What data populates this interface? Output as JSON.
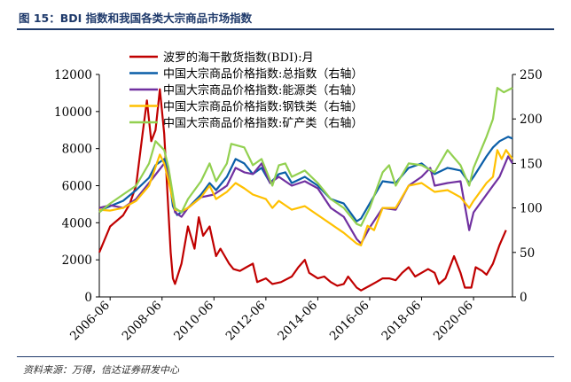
{
  "figure": {
    "title": "图 15：BDI 指数和我国各类大宗商品市场指数",
    "source": "资料来源：万得，信达证券研发中心"
  },
  "chart_data": {
    "type": "line",
    "title": "",
    "xlabel": "",
    "ylabel_left": "",
    "ylabel_right": "",
    "ylim_left": [
      0,
      12000
    ],
    "ylim_right": [
      0,
      250
    ],
    "grid": false,
    "legend_position": "top-center",
    "xlim": [
      "2006-01",
      "2021-12"
    ],
    "x_ticks": [
      "2006-06",
      "2008-06",
      "2010-06",
      "2012-06",
      "2014-06",
      "2016-06",
      "2018-06",
      "2020-06"
    ],
    "y_ticks_left": [
      "0",
      "2000",
      "4000",
      "6000",
      "8000",
      "10000",
      "12000"
    ],
    "y_ticks_right": [
      "0",
      "50",
      "100",
      "150",
      "200",
      "250"
    ],
    "series": [
      {
        "name": "波罗的海干散货指数(BDI):月",
        "axis": "left",
        "color": "#c00000",
        "points": [
          [
            "2006-01",
            2400
          ],
          [
            "2006-06",
            3800
          ],
          [
            "2006-12",
            4400
          ],
          [
            "2007-03",
            5000
          ],
          [
            "2007-06",
            6000
          ],
          [
            "2007-09",
            8800
          ],
          [
            "2007-11",
            10600
          ],
          [
            "2008-01",
            8400
          ],
          [
            "2008-03",
            9000
          ],
          [
            "2008-05",
            11200
          ],
          [
            "2008-07",
            8800
          ],
          [
            "2008-09",
            4500
          ],
          [
            "2008-10",
            2400
          ],
          [
            "2008-11",
            1000
          ],
          [
            "2008-12",
            700
          ],
          [
            "2009-03",
            1800
          ],
          [
            "2009-06",
            3800
          ],
          [
            "2009-09",
            2600
          ],
          [
            "2009-11",
            4300
          ],
          [
            "2010-01",
            3300
          ],
          [
            "2010-04",
            3800
          ],
          [
            "2010-07",
            2200
          ],
          [
            "2010-09",
            2600
          ],
          [
            "2010-11",
            2200
          ],
          [
            "2011-01",
            1800
          ],
          [
            "2011-03",
            1500
          ],
          [
            "2011-06",
            1400
          ],
          [
            "2011-09",
            1600
          ],
          [
            "2011-12",
            1800
          ],
          [
            "2012-02",
            800
          ],
          [
            "2012-06",
            1000
          ],
          [
            "2012-09",
            700
          ],
          [
            "2013-01",
            800
          ],
          [
            "2013-06",
            1100
          ],
          [
            "2013-09",
            1600
          ],
          [
            "2013-12",
            2000
          ],
          [
            "2014-02",
            1300
          ],
          [
            "2014-06",
            1000
          ],
          [
            "2014-09",
            1100
          ],
          [
            "2014-12",
            800
          ],
          [
            "2015-03",
            600
          ],
          [
            "2015-06",
            700
          ],
          [
            "2015-08",
            1100
          ],
          [
            "2015-12",
            500
          ],
          [
            "2016-02",
            350
          ],
          [
            "2016-06",
            600
          ],
          [
            "2016-09",
            800
          ],
          [
            "2016-12",
            1000
          ],
          [
            "2017-03",
            1000
          ],
          [
            "2017-06",
            900
          ],
          [
            "2017-09",
            1300
          ],
          [
            "2017-12",
            1600
          ],
          [
            "2018-03",
            1100
          ],
          [
            "2018-06",
            1300
          ],
          [
            "2018-09",
            1500
          ],
          [
            "2018-12",
            1300
          ],
          [
            "2019-02",
            700
          ],
          [
            "2019-05",
            1000
          ],
          [
            "2019-09",
            2200
          ],
          [
            "2019-12",
            1300
          ],
          [
            "2020-02",
            500
          ],
          [
            "2020-05",
            500
          ],
          [
            "2020-07",
            1600
          ],
          [
            "2020-10",
            1400
          ],
          [
            "2020-12",
            1200
          ],
          [
            "2021-03",
            1800
          ],
          [
            "2021-06",
            2800
          ],
          [
            "2021-09",
            3600
          ]
        ]
      },
      {
        "name": "中国大宗商品价格指数:总指数（右轴）",
        "axis": "right",
        "color": "#0a5ea8",
        "points": [
          [
            "2006-01",
            97
          ],
          [
            "2006-06",
            102
          ],
          [
            "2006-12",
            108
          ],
          [
            "2007-06",
            120
          ],
          [
            "2007-12",
            134
          ],
          [
            "2008-03",
            148
          ],
          [
            "2008-07",
            155
          ],
          [
            "2008-09",
            140
          ],
          [
            "2008-11",
            102
          ],
          [
            "2009-01",
            92
          ],
          [
            "2009-06",
            100
          ],
          [
            "2009-12",
            115
          ],
          [
            "2010-04",
            128
          ],
          [
            "2010-07",
            120
          ],
          [
            "2010-12",
            135
          ],
          [
            "2011-04",
            155
          ],
          [
            "2011-08",
            150
          ],
          [
            "2011-12",
            138
          ],
          [
            "2012-04",
            145
          ],
          [
            "2012-08",
            128
          ],
          [
            "2012-12",
            138
          ],
          [
            "2013-03",
            140
          ],
          [
            "2013-06",
            128
          ],
          [
            "2013-12",
            135
          ],
          [
            "2014-06",
            125
          ],
          [
            "2014-12",
            110
          ],
          [
            "2015-06",
            105
          ],
          [
            "2015-12",
            85
          ],
          [
            "2016-02",
            88
          ],
          [
            "2016-06",
            105
          ],
          [
            "2016-12",
            130
          ],
          [
            "2017-06",
            128
          ],
          [
            "2017-12",
            145
          ],
          [
            "2018-06",
            150
          ],
          [
            "2018-12",
            138
          ],
          [
            "2019-06",
            145
          ],
          [
            "2019-12",
            142
          ],
          [
            "2020-04",
            128
          ],
          [
            "2020-06",
            135
          ],
          [
            "2020-12",
            158
          ],
          [
            "2021-03",
            168
          ],
          [
            "2021-06",
            175
          ],
          [
            "2021-10",
            180
          ],
          [
            "2021-12",
            178
          ]
        ]
      },
      {
        "name": "中国大宗商品价格指数:能源类（右轴）",
        "axis": "right",
        "color": "#7030a0",
        "points": [
          [
            "2006-01",
            100
          ],
          [
            "2006-06",
            103
          ],
          [
            "2006-12",
            100
          ],
          [
            "2007-06",
            110
          ],
          [
            "2007-12",
            128
          ],
          [
            "2008-07",
            150
          ],
          [
            "2008-09",
            138
          ],
          [
            "2008-12",
            95
          ],
          [
            "2009-03",
            90
          ],
          [
            "2009-06",
            100
          ],
          [
            "2009-12",
            112
          ],
          [
            "2010-06",
            115
          ],
          [
            "2010-12",
            125
          ],
          [
            "2011-04",
            145
          ],
          [
            "2011-08",
            140
          ],
          [
            "2011-12",
            138
          ],
          [
            "2012-04",
            150
          ],
          [
            "2012-08",
            128
          ],
          [
            "2012-12",
            135
          ],
          [
            "2013-06",
            125
          ],
          [
            "2013-12",
            130
          ],
          [
            "2014-06",
            122
          ],
          [
            "2014-12",
            100
          ],
          [
            "2015-06",
            90
          ],
          [
            "2015-12",
            65
          ],
          [
            "2016-02",
            60
          ],
          [
            "2016-06",
            78
          ],
          [
            "2016-12",
            100
          ],
          [
            "2017-06",
            98
          ],
          [
            "2017-12",
            125
          ],
          [
            "2018-06",
            135
          ],
          [
            "2018-10",
            145
          ],
          [
            "2018-12",
            125
          ],
          [
            "2019-06",
            128
          ],
          [
            "2019-12",
            130
          ],
          [
            "2020-04",
            75
          ],
          [
            "2020-06",
            95
          ],
          [
            "2020-12",
            115
          ],
          [
            "2021-03",
            125
          ],
          [
            "2021-06",
            135
          ],
          [
            "2021-10",
            158
          ],
          [
            "2021-12",
            150
          ]
        ]
      },
      {
        "name": "中国大宗商品价格指数:钢铁类（右轴）",
        "axis": "right",
        "color": "#ffc000",
        "points": [
          [
            "2006-01",
            98
          ],
          [
            "2006-06",
            97
          ],
          [
            "2006-12",
            100
          ],
          [
            "2007-06",
            108
          ],
          [
            "2007-12",
            125
          ],
          [
            "2008-05",
            160
          ],
          [
            "2008-07",
            150
          ],
          [
            "2008-09",
            130
          ],
          [
            "2008-12",
            98
          ],
          [
            "2009-03",
            96
          ],
          [
            "2009-06",
            100
          ],
          [
            "2009-12",
            112
          ],
          [
            "2010-04",
            125
          ],
          [
            "2010-07",
            110
          ],
          [
            "2010-12",
            118
          ],
          [
            "2011-04",
            128
          ],
          [
            "2011-08",
            122
          ],
          [
            "2011-12",
            115
          ],
          [
            "2012-06",
            110
          ],
          [
            "2012-09",
            100
          ],
          [
            "2012-12",
            108
          ],
          [
            "2013-06",
            98
          ],
          [
            "2013-12",
            102
          ],
          [
            "2014-06",
            92
          ],
          [
            "2014-12",
            82
          ],
          [
            "2015-06",
            72
          ],
          [
            "2015-12",
            60
          ],
          [
            "2016-02",
            58
          ],
          [
            "2016-05",
            80
          ],
          [
            "2016-08",
            75
          ],
          [
            "2016-12",
            100
          ],
          [
            "2017-06",
            100
          ],
          [
            "2017-12",
            125
          ],
          [
            "2018-06",
            128
          ],
          [
            "2018-12",
            118
          ],
          [
            "2019-06",
            120
          ],
          [
            "2019-12",
            112
          ],
          [
            "2020-04",
            100
          ],
          [
            "2020-06",
            108
          ],
          [
            "2020-12",
            128
          ],
          [
            "2021-03",
            135
          ],
          [
            "2021-05",
            165
          ],
          [
            "2021-07",
            155
          ],
          [
            "2021-09",
            165
          ],
          [
            "2021-12",
            155
          ]
        ]
      },
      {
        "name": "中国大宗商品价格指数:矿产类（右轴）",
        "axis": "right",
        "color": "#92d050",
        "points": [
          [
            "2006-01",
            95
          ],
          [
            "2006-06",
            105
          ],
          [
            "2006-12",
            115
          ],
          [
            "2007-06",
            125
          ],
          [
            "2007-12",
            150
          ],
          [
            "2008-03",
            175
          ],
          [
            "2008-07",
            165
          ],
          [
            "2008-09",
            145
          ],
          [
            "2008-12",
            100
          ],
          [
            "2009-03",
            95
          ],
          [
            "2009-06",
            110
          ],
          [
            "2009-12",
            130
          ],
          [
            "2010-04",
            150
          ],
          [
            "2010-07",
            130
          ],
          [
            "2010-12",
            150
          ],
          [
            "2011-02",
            172
          ],
          [
            "2011-08",
            168
          ],
          [
            "2011-12",
            148
          ],
          [
            "2012-04",
            155
          ],
          [
            "2012-09",
            125
          ],
          [
            "2012-12",
            148
          ],
          [
            "2013-03",
            150
          ],
          [
            "2013-06",
            135
          ],
          [
            "2013-12",
            142
          ],
          [
            "2014-06",
            128
          ],
          [
            "2014-12",
            110
          ],
          [
            "2015-06",
            100
          ],
          [
            "2015-12",
            82
          ],
          [
            "2016-02",
            80
          ],
          [
            "2016-06",
            100
          ],
          [
            "2016-12",
            140
          ],
          [
            "2017-03",
            148
          ],
          [
            "2017-06",
            125
          ],
          [
            "2017-12",
            150
          ],
          [
            "2018-06",
            148
          ],
          [
            "2018-12",
            140
          ],
          [
            "2019-06",
            165
          ],
          [
            "2019-12",
            148
          ],
          [
            "2020-04",
            125
          ],
          [
            "2020-06",
            145
          ],
          [
            "2020-12",
            180
          ],
          [
            "2021-03",
            200
          ],
          [
            "2021-05",
            235
          ],
          [
            "2021-08",
            230
          ],
          [
            "2021-12",
            235
          ]
        ]
      }
    ]
  }
}
